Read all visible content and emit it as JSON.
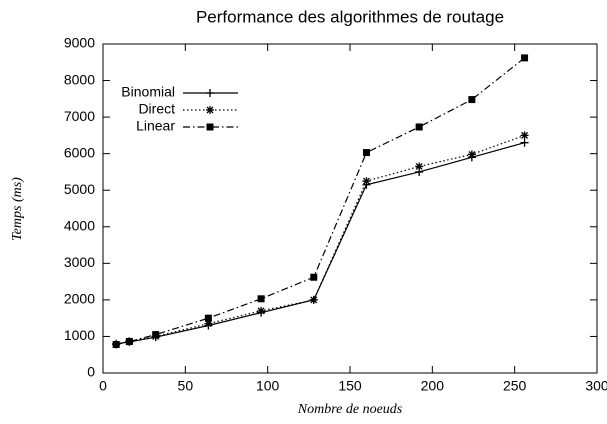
{
  "chart_data": {
    "type": "line",
    "title": "Performance des algorithmes de routage",
    "xlabel": "Nombre de noeuds",
    "ylabel": "Temps (ms)",
    "x": [
      8,
      16,
      32,
      64,
      96,
      128,
      160,
      192,
      224,
      256
    ],
    "series": [
      {
        "name": "Binomial",
        "color": "#000000",
        "style": "solid",
        "marker": "plus",
        "values": [
          800,
          850,
          980,
          1300,
          1650,
          2000,
          5150,
          5500,
          5900,
          6300
        ]
      },
      {
        "name": "Direct",
        "color": "#000000",
        "style": "dotted",
        "marker": "star",
        "values": [
          780,
          870,
          1000,
          1350,
          1700,
          2000,
          5250,
          5650,
          5980,
          6500
        ]
      },
      {
        "name": "Linear",
        "color": "#000000",
        "style": "dashdot",
        "marker": "square",
        "values": [
          780,
          860,
          1050,
          1500,
          2030,
          2620,
          6030,
          6730,
          7480,
          8620
        ]
      }
    ],
    "xlim": [
      0,
      300
    ],
    "xticks": [
      0,
      50,
      100,
      150,
      200,
      250,
      300
    ],
    "ylim": [
      0,
      9000
    ],
    "yticks": [
      0,
      1000,
      2000,
      3000,
      4000,
      5000,
      6000,
      7000,
      8000,
      9000
    ],
    "grid": false,
    "legend": "top-left"
  }
}
